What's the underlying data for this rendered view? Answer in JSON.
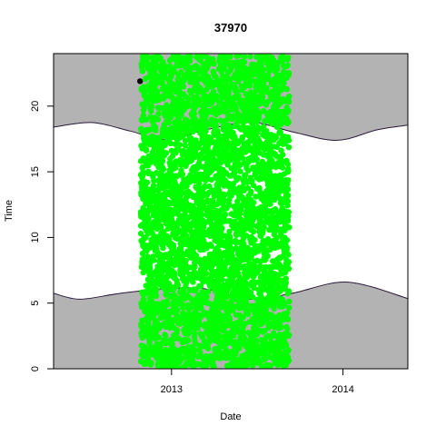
{
  "chart_data": {
    "type": "scatter",
    "title": "37970",
    "xlabel": "Date",
    "ylabel": "Time",
    "x_range": [
      "2012-04-25",
      "2014-05-19"
    ],
    "ylim": [
      0,
      24
    ],
    "x_ticks": [
      {
        "label": "2013",
        "date": "2013-01-01"
      },
      {
        "label": "2014",
        "date": "2014-01-01"
      }
    ],
    "y_ticks": [
      0,
      5,
      10,
      15,
      20
    ],
    "grid": false,
    "legend": "none",
    "colors": {
      "night_fill": "#b3b3b3",
      "boundary_line": "#2a1a3a",
      "points": "#00ff00",
      "outlier_point": "#000000"
    },
    "sunset_curve": [
      {
        "date": "2012-04-25",
        "time": 18.4
      },
      {
        "date": "2012-07-15",
        "time": 18.75
      },
      {
        "date": "2012-10-05",
        "time": 18.1
      },
      {
        "date": "2012-12-20",
        "time": 17.45
      },
      {
        "date": "2013-03-15",
        "time": 18.2
      },
      {
        "date": "2013-06-20",
        "time": 18.75
      },
      {
        "date": "2013-09-20",
        "time": 18.0
      },
      {
        "date": "2013-12-20",
        "time": 17.4
      },
      {
        "date": "2014-03-15",
        "time": 18.2
      },
      {
        "date": "2014-05-19",
        "time": 18.55
      }
    ],
    "sunrise_curve": [
      {
        "date": "2012-04-25",
        "time": 5.75
      },
      {
        "date": "2012-06-20",
        "time": 5.3
      },
      {
        "date": "2012-09-15",
        "time": 5.75
      },
      {
        "date": "2012-12-20",
        "time": 6.1
      },
      {
        "date": "2013-03-10",
        "time": 6.1
      },
      {
        "date": "2013-06-20",
        "time": 5.3
      },
      {
        "date": "2013-09-15",
        "time": 5.75
      },
      {
        "date": "2014-01-10",
        "time": 6.6
      },
      {
        "date": "2014-05-19",
        "time": 5.35
      }
    ],
    "observations": {
      "date_start": "2012-10-28",
      "date_end": "2013-09-08",
      "time_min": 0.1,
      "time_max": 23.9
    },
    "outliers": [
      {
        "date": "2012-10-28",
        "time": 21.9
      }
    ]
  }
}
